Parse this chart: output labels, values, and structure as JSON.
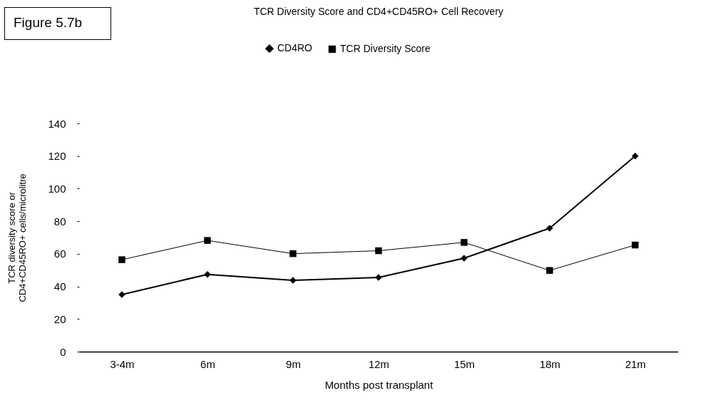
{
  "chart_data": {
    "type": "line",
    "title": "TCR Diversity Score and CD4+CD45RO+ Cell Recovery",
    "xlabel": "Months post transplant",
    "ylabel": "TCR diversity score or\nCD4+CD45RO+ cells/microlitre",
    "annotations": [
      "Figure 5.7b"
    ],
    "categories": [
      "3-4m",
      "6m",
      "9m",
      "12m",
      "15m",
      "18m",
      "21m"
    ],
    "series": [
      {
        "name": "CD4RO",
        "color": "#000000",
        "marker": "diamond",
        "values": [
          35,
          47.4,
          43.8,
          45.5,
          57.3,
          75.7,
          120
        ]
      },
      {
        "name": "TCR Diversity Score",
        "color": "#000000",
        "marker": "square",
        "values": [
          56.4,
          68.2,
          60.1,
          61.9,
          67,
          49.8,
          65.4
        ]
      }
    ],
    "ylim": [
      0,
      140
    ],
    "yticks": [
      0,
      20,
      40,
      60,
      80,
      100,
      120,
      140
    ],
    "grid": false,
    "legend": "top"
  }
}
